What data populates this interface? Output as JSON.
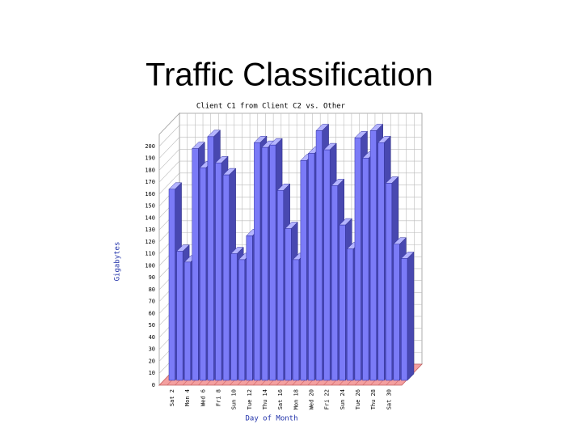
{
  "title": "Traffic Classification",
  "chart_data": {
    "type": "bar3d",
    "title": "Client C1 from Client C2 vs. Other",
    "xlabel": "Day of Month",
    "ylabel": "Gigabytes",
    "categories": [
      "Sat 2",
      null,
      "Mon 4",
      null,
      "Wed 6",
      null,
      "Fri 8",
      null,
      "Sun 10",
      null,
      "Tue 12",
      null,
      "Thu 14",
      null,
      "Sat 16",
      null,
      "Mon 18",
      null,
      "Wed 20",
      null,
      "Fri 22",
      null,
      "Sun 24",
      null,
      "Tue 26",
      null,
      "Thu 28",
      null,
      "Sat 30",
      null,
      null
    ],
    "values": [
      160,
      108,
      99,
      194,
      178,
      204,
      182,
      172,
      106,
      101,
      121,
      199,
      195,
      197,
      159,
      127,
      101,
      184,
      190,
      209,
      193,
      163,
      130,
      110,
      203,
      186,
      209,
      199,
      165,
      114,
      102
    ],
    "color": "#7b7bf7",
    "ylim": [
      0,
      210
    ],
    "yticks": [
      0,
      10,
      20,
      30,
      40,
      50,
      60,
      70,
      80,
      90,
      100,
      110,
      120,
      130,
      140,
      150,
      160,
      170,
      180,
      190,
      200
    ],
    "grid": true
  }
}
